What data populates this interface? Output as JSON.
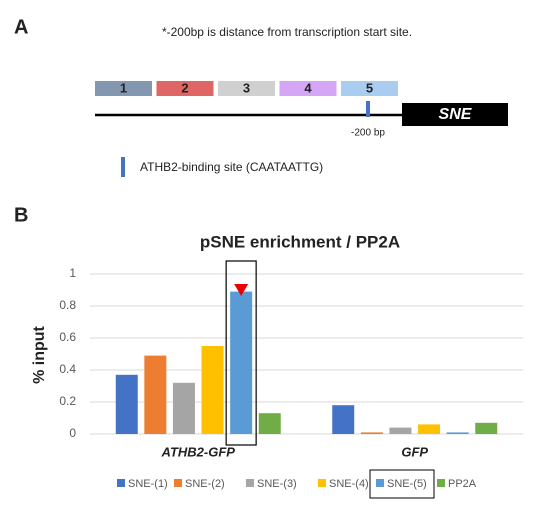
{
  "panel_a": {
    "label": "A",
    "note": "*-200bp is distance from transcription start site.",
    "regions": [
      "1",
      "2",
      "3",
      "4",
      "5"
    ],
    "gene": "SNE",
    "site_label": "-200 bp",
    "legend": "ATHB2-binding site (CAATAATTG)"
  },
  "panel_b": {
    "label": "B"
  },
  "chart_data": {
    "type": "bar",
    "title": "pSNE enrichment / PP2A",
    "y_label": "% input",
    "categories": [
      "ATHB2-GFP",
      "GFP"
    ],
    "series": [
      {
        "name": "SNE-(1)",
        "color": "#4472c4",
        "values": [
          0.37,
          0.18
        ]
      },
      {
        "name": "SNE-(2)",
        "color": "#ed7d31",
        "values": [
          0.49,
          0.01
        ]
      },
      {
        "name": "SNE-(3)",
        "color": "#a5a5a5",
        "values": [
          0.32,
          0.04
        ]
      },
      {
        "name": "SNE-(4)",
        "color": "#ffc000",
        "values": [
          0.55,
          0.06
        ]
      },
      {
        "name": "SNE-(5)",
        "color": "#5b9bd5",
        "values": [
          0.89,
          0.01
        ]
      },
      {
        "name": "PP2A",
        "color": "#70ad47",
        "values": [
          0.13,
          0.07
        ]
      }
    ],
    "ylim": [
      0,
      1
    ],
    "yticks": [
      0,
      0.2,
      0.4,
      0.6,
      0.8,
      1
    ],
    "grid": true
  }
}
